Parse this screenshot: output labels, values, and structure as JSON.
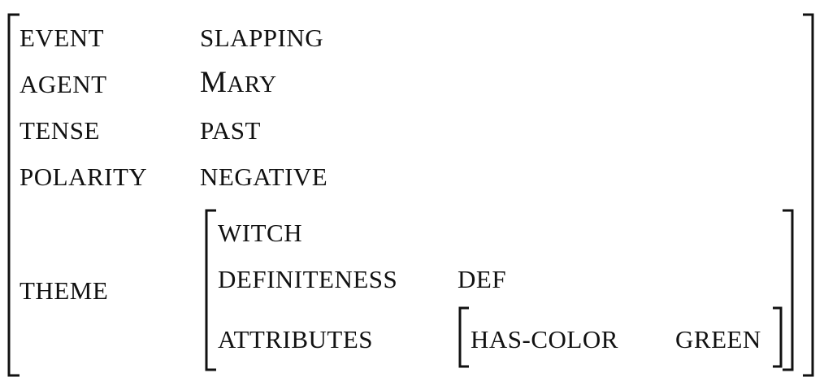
{
  "avm": {
    "rows": [
      {
        "feature": "EVENT",
        "value": "SLAPPING"
      },
      {
        "feature": "AGENT",
        "value_first": "M",
        "value_rest": "ARY"
      },
      {
        "feature": "TENSE",
        "value": "PAST"
      },
      {
        "feature": "POLARITY",
        "value": "NEGATIVE"
      },
      {
        "feature": "THEME"
      }
    ],
    "theme": {
      "head": "WITCH",
      "definiteness_feature": "DEFINITENESS",
      "definiteness_value": "DEF",
      "attributes_feature": "ATTRIBUTES",
      "attributes": {
        "feature": "HAS-COLOR",
        "value": "GREEN"
      }
    }
  }
}
